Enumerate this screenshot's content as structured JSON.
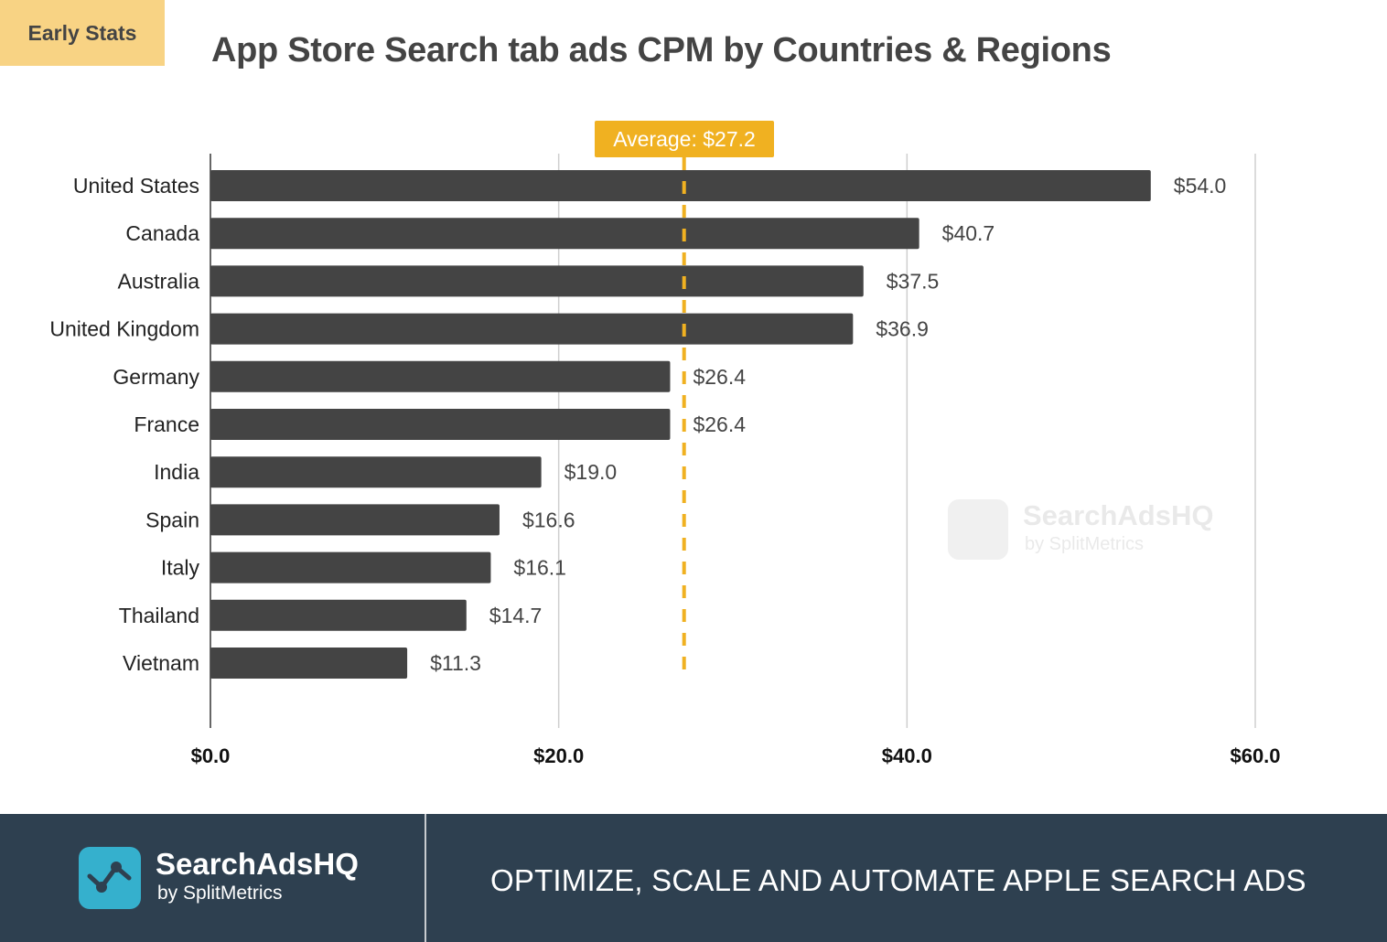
{
  "badge": "Early Stats",
  "watermark": {
    "name": "SearchAdsHQ",
    "sub": "by SplitMetrics"
  },
  "footer": {
    "logo_name": "SearchAdsHQ",
    "logo_sub": "by SplitMetrics",
    "slogan": "OPTIMIZE, SCALE AND AUTOMATE APPLE SEARCH ADS"
  },
  "colors": {
    "bar": "#444444",
    "average": "#f0b121",
    "badge": "#f8d384",
    "footer": "#2e4050",
    "logo": "#35b0cd"
  },
  "chart_data": {
    "type": "bar",
    "orientation": "horizontal",
    "title": "App Store Search tab ads CPM by Countries & Regions",
    "categories": [
      "United States",
      "Canada",
      "Australia",
      "United Kingdom",
      "Germany",
      "France",
      "India",
      "Spain",
      "Italy",
      "Thailand",
      "Vietnam"
    ],
    "values": [
      54.0,
      40.7,
      37.5,
      36.9,
      26.4,
      26.4,
      19.0,
      16.6,
      16.1,
      14.7,
      11.3
    ],
    "value_labels": [
      "$54.0",
      "$40.7",
      "$37.5",
      "$36.9",
      "$26.4",
      "$26.4",
      "$19.0",
      "$16.6",
      "$16.1",
      "$14.7",
      "$11.3"
    ],
    "xlim": [
      0,
      60
    ],
    "xticks": [
      0,
      20,
      40,
      60
    ],
    "xtick_labels": [
      "$0.0",
      "$20.0",
      "$40.0",
      "$60.0"
    ],
    "grid": true,
    "average": {
      "value": 27.2,
      "label": "Average: $27.2"
    }
  }
}
